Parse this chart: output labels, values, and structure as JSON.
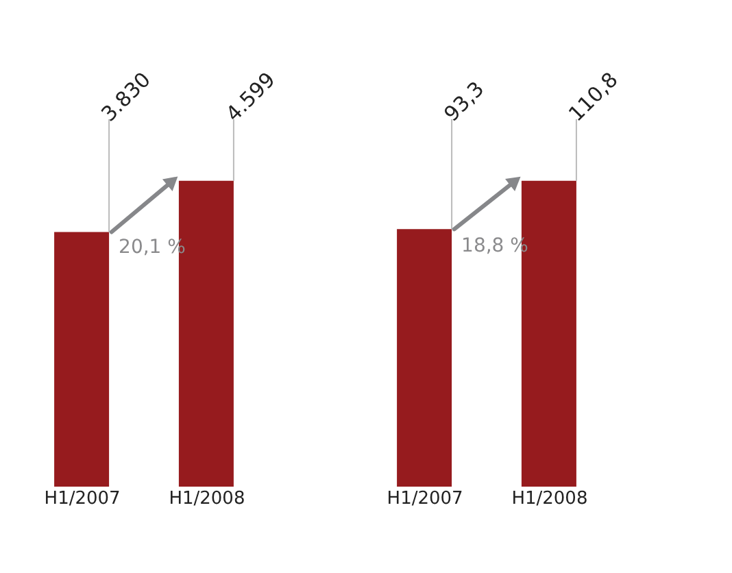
{
  "chart_data": [
    {
      "type": "bar",
      "categories": [
        "H1/2007",
        "H1/2008"
      ],
      "values": [
        3830,
        4599
      ],
      "value_labels": [
        "3.830",
        "4.599"
      ],
      "color": "#961b1e",
      "annotations": [
        "20,1 %"
      ],
      "grid": false
    },
    {
      "type": "bar",
      "categories": [
        "H1/2007",
        "H1/2008"
      ],
      "values": [
        93.3,
        110.8
      ],
      "value_labels": [
        "93,3",
        "110,8"
      ],
      "color": "#961b1e",
      "annotations": [
        "18,8 %"
      ],
      "grid": false
    }
  ]
}
